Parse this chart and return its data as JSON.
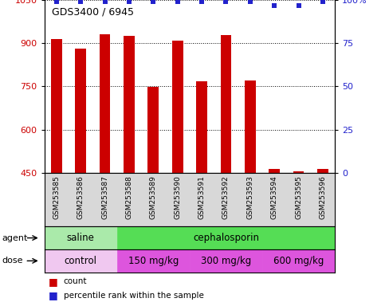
{
  "title": "GDS3400 / 6945",
  "samples": [
    "GSM253585",
    "GSM253586",
    "GSM253587",
    "GSM253588",
    "GSM253589",
    "GSM253590",
    "GSM253591",
    "GSM253592",
    "GSM253593",
    "GSM253594",
    "GSM253595",
    "GSM253596"
  ],
  "counts": [
    915,
    880,
    930,
    925,
    748,
    908,
    768,
    928,
    770,
    465,
    455,
    465
  ],
  "percentile_ranks": [
    99,
    99,
    99,
    99,
    99,
    99,
    99,
    99,
    99,
    97,
    97,
    99
  ],
  "ylim_left": [
    450,
    1050
  ],
  "ylim_right": [
    0,
    100
  ],
  "yticks_left": [
    450,
    600,
    750,
    900,
    1050
  ],
  "yticks_right": [
    0,
    25,
    50,
    75,
    100
  ],
  "bar_color": "#cc0000",
  "scatter_color": "#2222cc",
  "agent_groups": [
    {
      "label": "saline",
      "start": 0,
      "end": 3,
      "color": "#aaeaaa"
    },
    {
      "label": "cephalosporin",
      "start": 3,
      "end": 12,
      "color": "#55dd55"
    }
  ],
  "dose_groups": [
    {
      "label": "control",
      "start": 0,
      "end": 3,
      "color": "#f0c8f0"
    },
    {
      "label": "150 mg/kg",
      "start": 3,
      "end": 6,
      "color": "#dd55dd"
    },
    {
      "label": "300 mg/kg",
      "start": 6,
      "end": 9,
      "color": "#dd55dd"
    },
    {
      "label": "600 mg/kg",
      "start": 9,
      "end": 12,
      "color": "#dd55dd"
    }
  ],
  "tick_label_color_left": "#cc0000",
  "tick_label_color_right": "#2222cc",
  "bar_baseline": 450,
  "xlabel_gray": "#cccccc",
  "agent_label": "agent",
  "dose_label": "dose"
}
